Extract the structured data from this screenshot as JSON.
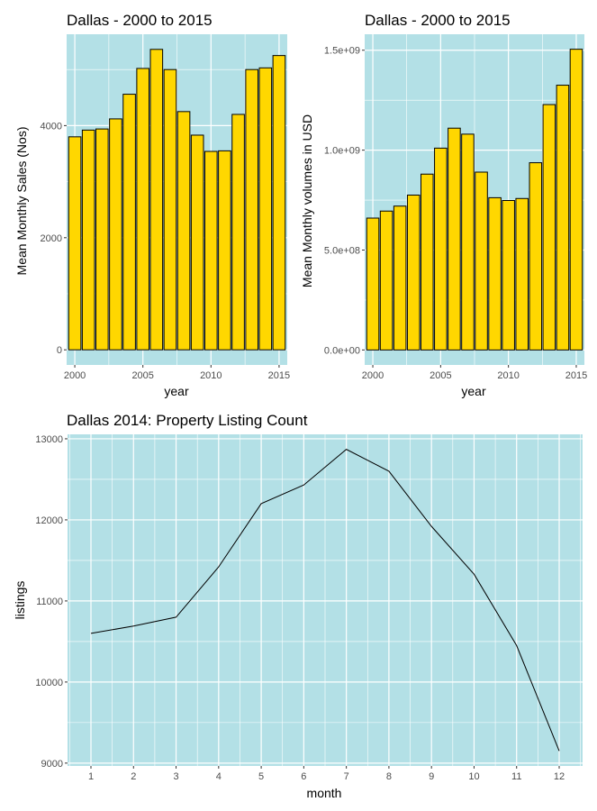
{
  "colors": {
    "panel_bg": "#b3e0e6",
    "grid": "#ffffff",
    "bar_fill": "#ffd700",
    "bar_stroke": "#000000",
    "line": "#000000",
    "tick_text": "#4d4d4d"
  },
  "chart_data": [
    {
      "type": "bar",
      "title": "Dallas - 2000 to 2015",
      "xlabel": "year",
      "ylabel": "Mean Monthly Sales (Nos)",
      "x": [
        2000,
        2001,
        2002,
        2003,
        2004,
        2005,
        2006,
        2007,
        2008,
        2009,
        2010,
        2011,
        2012,
        2013,
        2014,
        2015
      ],
      "values": [
        3800,
        3920,
        3940,
        4120,
        4560,
        5020,
        5360,
        5000,
        4250,
        3830,
        3540,
        3550,
        4200,
        5000,
        5030,
        5250
      ],
      "xticks": [
        2000,
        2005,
        2010,
        2015
      ],
      "xtick_labels": [
        "2000",
        "2005",
        "2010",
        "2015"
      ],
      "yticks": [
        0,
        2000,
        4000
      ],
      "ytick_labels": [
        "0",
        "2000",
        "4000"
      ],
      "xlim": [
        1999.4,
        2015.6
      ],
      "ylim": [
        -270,
        5630
      ]
    },
    {
      "type": "bar",
      "title": "Dallas - 2000 to 2015",
      "xlabel": "year",
      "ylabel": "Mean Monthly volumes in USD",
      "x": [
        2000,
        2001,
        2002,
        2003,
        2004,
        2005,
        2006,
        2007,
        2008,
        2009,
        2010,
        2011,
        2012,
        2013,
        2014,
        2015
      ],
      "values": [
        660000000,
        695000000,
        720000000,
        775000000,
        880000000,
        1010000000,
        1110000000,
        1080000000,
        890000000,
        762000000,
        748000000,
        758000000,
        937000000,
        1228000000,
        1325000000,
        1505000000
      ],
      "xticks": [
        2000,
        2005,
        2010,
        2015
      ],
      "xtick_labels": [
        "2000",
        "2005",
        "2010",
        "2015"
      ],
      "yticks": [
        0,
        500000000,
        1000000000,
        1500000000
      ],
      "ytick_labels": [
        "0.0e+00",
        "5.0e+08",
        "1.0e+09",
        "1.5e+09"
      ],
      "xlim": [
        1999.4,
        2015.6
      ],
      "ylim": [
        -75000000,
        1580000000
      ]
    },
    {
      "type": "line",
      "title": "Dallas 2014: Property Listing Count",
      "xlabel": "month",
      "ylabel": "listings",
      "x": [
        1,
        2,
        3,
        4,
        5,
        6,
        7,
        8,
        9,
        10,
        11,
        12
      ],
      "values": [
        10600,
        10690,
        10800,
        11420,
        12200,
        12430,
        12870,
        12600,
        11920,
        11330,
        10450,
        9150
      ],
      "xticks": [
        1,
        2,
        3,
        4,
        5,
        6,
        7,
        8,
        9,
        10,
        11,
        12
      ],
      "xtick_labels": [
        "1",
        "2",
        "3",
        "4",
        "5",
        "6",
        "7",
        "8",
        "9",
        "10",
        "11",
        "12"
      ],
      "yticks": [
        9000,
        10000,
        11000,
        12000,
        13000
      ],
      "ytick_labels": [
        "9000",
        "10000",
        "11000",
        "12000",
        "13000"
      ],
      "xlim": [
        0.45,
        12.55
      ],
      "ylim": [
        8965,
        13055
      ]
    }
  ]
}
